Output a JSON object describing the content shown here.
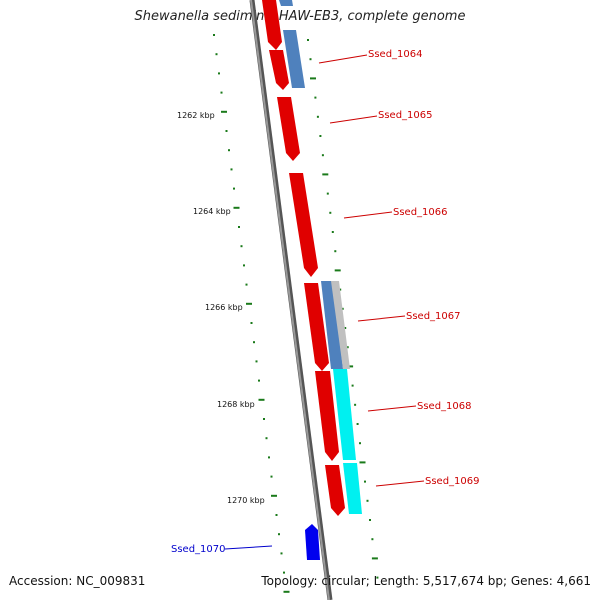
{
  "title": "Shewanella sediminis HAW-EB3, complete genome",
  "accession": "Accession: NC_009831",
  "summary": "Topology: circular; Length: 5,517,674 bp; Genes: 4,661",
  "scale_labels": [
    "1262 kbp",
    "1264 kbp",
    "1266 kbp",
    "1268 kbp",
    "1270 kbp"
  ],
  "gene_labels": [
    {
      "text": "Ssed_1064",
      "color": "#cc0000"
    },
    {
      "text": "Ssed_1065",
      "color": "#cc0000"
    },
    {
      "text": "Ssed_1066",
      "color": "#cc0000"
    },
    {
      "text": "Ssed_1067",
      "color": "#cc0000"
    },
    {
      "text": "Ssed_1068",
      "color": "#cc0000"
    },
    {
      "text": "Ssed_1069",
      "color": "#cc0000"
    },
    {
      "text": "Ssed_1070",
      "color": "#0000cc"
    }
  ],
  "colors": {
    "backbone": "#8c8c8c",
    "gene_red": "#ff0000",
    "gene_blue": "#0000ee",
    "feature_steelblue": "#4f81bd",
    "feature_cyan": "#00ffff",
    "feature_grey": "#c0c0c0",
    "tick_green": "#1a7a1a"
  }
}
